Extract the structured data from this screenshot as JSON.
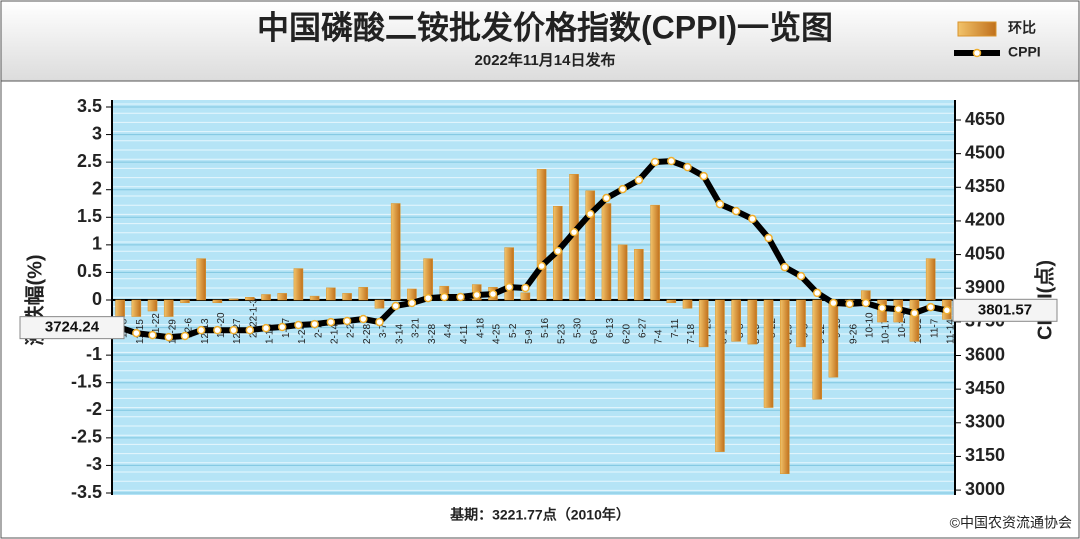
{
  "chart_data": {
    "type": "combo",
    "title": "中国磷酸二铵批发价格指数(CPPI)一览图",
    "subtitle": "2022年11月14日发布",
    "ylabel": "涨跌幅(%)",
    "y2label": "CPPI(点)",
    "note": "基期：3221.77点（2010年）",
    "source": "©中国农资流通协会",
    "legend": "top-right",
    "grid": true,
    "categories": [
      "11-8",
      "11-15",
      "11-22",
      "11-29",
      "12-6",
      "12-13",
      "12-20",
      "12-27",
      "2022-1-3",
      "1-10",
      "1-17",
      "1-24",
      "2-7",
      "2-14",
      "2-21",
      "2-28",
      "3-7",
      "3-14",
      "3-21",
      "3-28",
      "4-4",
      "4-11",
      "4-18",
      "4-25",
      "5-2",
      "5-9",
      "5-16",
      "5-23",
      "5-30",
      "6-6",
      "6-13",
      "6-20",
      "6-27",
      "7-4",
      "7-11",
      "7-18",
      "7-25",
      "8-1",
      "8-8",
      "8-15",
      "8-22",
      "8-29",
      "9-5",
      "9-12",
      "9-19",
      "9-26",
      "10-10",
      "10-17",
      "10-24",
      "10-31",
      "11-7",
      "11-14"
    ],
    "series": [
      {
        "name": "环比",
        "type": "bar",
        "color": "#d8932c",
        "values": [
          -0.3,
          -0.3,
          -0.2,
          -0.3,
          -0.05,
          0.75,
          -0.05,
          0.02,
          0.05,
          0.1,
          0.12,
          0.57,
          0.07,
          0.22,
          0.12,
          0.23,
          -0.15,
          1.75,
          0.2,
          0.75,
          0.25,
          0.05,
          0.28,
          0.23,
          0.95,
          0.13,
          2.37,
          1.7,
          2.28,
          1.98,
          1.75,
          1.0,
          0.92,
          1.72,
          -0.05,
          -0.15,
          -0.85,
          -2.75,
          -0.75,
          -0.8,
          -1.95,
          -3.15,
          -0.85,
          -1.8,
          -1.4,
          -0.1,
          0.17,
          -0.4,
          -0.4,
          -0.75,
          0.75,
          -0.35
        ]
      },
      {
        "name": "CPPI",
        "type": "line",
        "axis": "y2",
        "color": "#000000",
        "values": [
          3724.24,
          3700,
          3691,
          3682,
          3687,
          3713,
          3713,
          3713,
          3713,
          3722,
          3727,
          3736,
          3740,
          3749,
          3754,
          3763,
          3749,
          3821,
          3834,
          3856,
          3861,
          3861,
          3870,
          3874,
          3905,
          3901,
          3999,
          4066,
          4150,
          4231,
          4302,
          4342,
          4382,
          4463,
          4467,
          4440,
          4400,
          4275,
          4244,
          4209,
          4124,
          3994,
          3954,
          3879,
          3834,
          3830,
          3834,
          3812,
          3807,
          3789,
          3816,
          3801.57
        ]
      }
    ],
    "annotations": [
      {
        "text": "3724.24",
        "index": 0
      },
      {
        "text": "3801.57",
        "index": 51
      }
    ],
    "ylim": [
      -3.5,
      3.5
    ],
    "yticks": [
      -3.5,
      -3,
      -2.5,
      -2,
      -1.5,
      -1,
      -0.5,
      0,
      0.5,
      1,
      1.5,
      2,
      2.5,
      3,
      3.5
    ],
    "y2lim": [
      2987,
      4708
    ],
    "y2ticks": [
      3000,
      3150,
      3300,
      3450,
      3600,
      3750,
      3900,
      4050,
      4200,
      4350,
      4500,
      4650
    ]
  }
}
